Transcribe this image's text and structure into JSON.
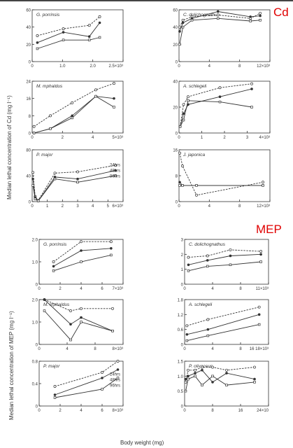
{
  "sections": {
    "cd_label": "Cd",
    "mep_label": "MEP",
    "cd_ylabel": "Median lethal concentration of Cd (mg l⁻¹)",
    "mep_ylabel": "Median lethal concentration of MEP (mg l⁻¹)",
    "xlabel": "Body weight (mg)"
  },
  "colors": {
    "ink": "#333333",
    "accent": "#e00000"
  },
  "chart_data": [
    {
      "id": "cd-g-porrinsis",
      "type": "line",
      "title": "G. porrinsis",
      "xlim": [
        0,
        3.5
      ],
      "ylim": [
        0,
        60
      ],
      "xticks": [
        "0",
        "1.0",
        "2.0",
        "2.5×10³"
      ],
      "yticks": [
        "0",
        "20",
        "40",
        "60"
      ],
      "series": [
        {
          "style": "dashed",
          "x": [
            0.2,
            1.2,
            2.2,
            2.6
          ],
          "y": [
            30,
            38,
            42,
            52
          ]
        },
        {
          "style": "solid-filled",
          "x": [
            0.2,
            1.2,
            2.2,
            2.6
          ],
          "y": [
            22,
            34,
            29,
            45
          ]
        },
        {
          "style": "solid",
          "x": [
            0.2,
            1.2,
            2.2,
            2.6
          ],
          "y": [
            15,
            25,
            25,
            28
          ]
        }
      ]
    },
    {
      "id": "cd-c-dolichognathus",
      "type": "line",
      "title": "C. dolichognathus",
      "xlim": [
        0,
        14
      ],
      "ylim": [
        0,
        60
      ],
      "xticks": [
        "0",
        "4",
        "8",
        "12×10³"
      ],
      "yticks": [
        "0",
        "20",
        "40",
        "60"
      ],
      "series": [
        {
          "style": "dashed",
          "x": [
            0.1,
            0.6,
            2,
            6,
            11,
            12.5
          ],
          "y": [
            40,
            48,
            52,
            54,
            50,
            56
          ]
        },
        {
          "style": "solid-filled",
          "x": [
            0.1,
            0.6,
            2,
            6,
            11,
            12.5
          ],
          "y": [
            35,
            45,
            50,
            58,
            52,
            53
          ]
        },
        {
          "style": "solid",
          "x": [
            0.1,
            0.6,
            2,
            6,
            11,
            12.5
          ],
          "y": [
            20,
            40,
            48,
            50,
            47,
            48
          ]
        }
      ]
    },
    {
      "id": "cd-m-mphaldus",
      "type": "line",
      "title": "M. mphaldus",
      "xlim": [
        0,
        5
      ],
      "ylim": [
        0,
        24
      ],
      "xticks": [
        "0",
        "2",
        "4",
        "5×10³"
      ],
      "yticks": [
        "0",
        "8",
        "16",
        "24"
      ],
      "series": [
        {
          "style": "dashed",
          "x": [
            0.1,
            1,
            2.2,
            3.5,
            4.5
          ],
          "y": [
            3,
            8,
            14,
            20,
            23
          ]
        },
        {
          "style": "solid-filled",
          "x": [
            0.1,
            1,
            2.2,
            3.5,
            4.5
          ],
          "y": [
            0,
            2,
            8,
            17,
            16
          ]
        },
        {
          "style": "solid",
          "x": [
            0.1,
            1,
            2.2,
            3.5,
            4.5
          ],
          "y": [
            0,
            2,
            7,
            17,
            12
          ]
        }
      ]
    },
    {
      "id": "cd-a-schlegeli",
      "type": "line",
      "title": "A. schlegeli",
      "xlim": [
        0,
        4
      ],
      "ylim": [
        0,
        40
      ],
      "xticks": [
        "0",
        "1",
        "2",
        "3",
        "4×10³"
      ],
      "yticks": [
        "0",
        "20",
        "40"
      ],
      "series": [
        {
          "style": "dashed",
          "x": [
            0.05,
            0.2,
            0.4,
            1.8,
            3.2
          ],
          "y": [
            5,
            22,
            28,
            35,
            38
          ]
        },
        {
          "style": "solid-filled",
          "x": [
            0.05,
            0.2,
            0.4,
            1.8,
            3.2
          ],
          "y": [
            5,
            15,
            22,
            28,
            34
          ]
        },
        {
          "style": "solid",
          "x": [
            0.05,
            0.2,
            0.4,
            1.8,
            3.2
          ],
          "y": [
            5,
            10,
            25,
            24,
            20
          ]
        }
      ]
    },
    {
      "id": "cd-p-major",
      "type": "line",
      "title": "P. major",
      "xlim": [
        0,
        6
      ],
      "ylim": [
        0,
        80
      ],
      "xticks": [
        "0",
        "1",
        "2",
        "3",
        "4",
        "5",
        "6×10³"
      ],
      "yticks": [
        "0",
        "40",
        "80"
      ],
      "legend": [
        "24hrs",
        "48hrs",
        "96hrs"
      ],
      "series": [
        {
          "name": "24hrs",
          "style": "dashed",
          "x": [
            0.05,
            0.2,
            0.4,
            1.5,
            3,
            5.5
          ],
          "y": [
            45,
            8,
            2,
            44,
            46,
            56
          ]
        },
        {
          "name": "48hrs",
          "style": "solid-filled",
          "x": [
            0.05,
            0.2,
            0.4,
            1.5,
            3,
            5.5
          ],
          "y": [
            35,
            6,
            1,
            38,
            35,
            48
          ]
        },
        {
          "name": "96hrs",
          "style": "solid",
          "x": [
            0.05,
            0.2,
            0.4,
            1.5,
            3,
            5.5
          ],
          "y": [
            25,
            4,
            1,
            35,
            30,
            40
          ]
        }
      ]
    },
    {
      "id": "cd-j-japonica",
      "type": "line",
      "title": "J. japonica",
      "xlim": [
        0,
        13
      ],
      "ylim": [
        0,
        16
      ],
      "xticks": [
        "0",
        "4",
        "8",
        "12×10³"
      ],
      "yticks": [
        "0",
        "8",
        "16"
      ],
      "series": [
        {
          "style": "dashed",
          "x": [
            0.1,
            0.5,
            2.5,
            12
          ],
          "y": [
            15,
            11,
            2,
            6
          ]
        },
        {
          "style": "solid-filled",
          "x": [
            0.1,
            0.5,
            2.5,
            12
          ],
          "y": [
            6,
            5,
            5,
            5
          ]
        },
        {
          "style": "solid",
          "x": [
            0.1,
            0.5,
            2.5,
            12
          ],
          "y": [
            5,
            5,
            5,
            5
          ]
        }
      ]
    },
    {
      "id": "mep-g-porrinsis",
      "type": "line",
      "title": "G. porrinsis",
      "xlim": [
        0,
        7
      ],
      "ylim": [
        0,
        2
      ],
      "xticks": [
        "0",
        "2",
        "4",
        "6",
        "7×10³"
      ],
      "yticks": [
        "0",
        "1.0",
        "2.0"
      ],
      "series": [
        {
          "style": "dashed",
          "x": [
            1.2,
            3.5,
            6
          ],
          "y": [
            1.0,
            1.9,
            1.9
          ]
        },
        {
          "style": "solid-filled",
          "x": [
            1.2,
            3.5,
            6
          ],
          "y": [
            0.8,
            1.5,
            1.6
          ]
        },
        {
          "style": "solid",
          "x": [
            1.2,
            3.5,
            6
          ],
          "y": [
            0.6,
            1.0,
            1.3
          ]
        }
      ]
    },
    {
      "id": "mep-c-dolichognathus",
      "type": "line",
      "title": "C. dolichognathus",
      "xlim": [
        0,
        11
      ],
      "ylim": [
        0,
        3
      ],
      "xticks": [
        "0",
        "4",
        "8",
        "11×10³"
      ],
      "yticks": [
        "0",
        "1",
        "2",
        "3"
      ],
      "series": [
        {
          "style": "dashed",
          "x": [
            0.5,
            3,
            6,
            10
          ],
          "y": [
            1.8,
            1.9,
            2.3,
            2.2
          ]
        },
        {
          "style": "solid-filled",
          "x": [
            0.5,
            3,
            6,
            10
          ],
          "y": [
            1.3,
            1.6,
            1.9,
            2.0
          ]
        },
        {
          "style": "solid",
          "x": [
            0.5,
            3,
            6,
            10
          ],
          "y": [
            0.9,
            1.2,
            1.3,
            1.5
          ]
        }
      ]
    },
    {
      "id": "mep-m-mphaldus",
      "type": "line",
      "title": "M. mphaldus",
      "xlim": [
        0,
        8
      ],
      "ylim": [
        0,
        2
      ],
      "xticks": [
        "0",
        "4",
        "8",
        "8×10³"
      ],
      "yticks": [
        "0",
        "1.0",
        "2.0"
      ],
      "series": [
        {
          "style": "dashed",
          "x": [
            0.5,
            3,
            4,
            7
          ],
          "y": [
            2.0,
            1.5,
            1.6,
            1.6
          ]
        },
        {
          "style": "solid-filled",
          "x": [
            0.5,
            3,
            4,
            7
          ],
          "y": [
            2.0,
            0.9,
            1.2,
            0.6
          ]
        },
        {
          "style": "solid",
          "x": [
            0.5,
            3,
            4,
            7
          ],
          "y": [
            1.5,
            0.2,
            1.0,
            0.6
          ]
        }
      ]
    },
    {
      "id": "mep-a-schlegeli",
      "type": "line",
      "title": "A. schlegeli",
      "xlim": [
        0,
        18
      ],
      "ylim": [
        0,
        1.8
      ],
      "xticks": [
        "0",
        "4",
        "8",
        "16 18×10³"
      ],
      "yticks": [
        "0",
        "0.6",
        "1.2",
        "1.8"
      ],
      "series": [
        {
          "style": "dashed",
          "x": [
            0.5,
            5,
            16
          ],
          "y": [
            0.75,
            1.0,
            1.5
          ]
        },
        {
          "style": "solid-filled",
          "x": [
            0.5,
            5,
            16
          ],
          "y": [
            0.4,
            0.6,
            1.2
          ]
        },
        {
          "style": "solid",
          "x": [
            0.5,
            5,
            16
          ],
          "y": [
            0.15,
            0.35,
            0.8
          ]
        }
      ]
    },
    {
      "id": "mep-p-major",
      "type": "line",
      "title": "P. major",
      "xlim": [
        0,
        8
      ],
      "ylim": [
        0,
        0.8
      ],
      "xticks": [
        "0",
        "2",
        "4",
        "6",
        "8×10³"
      ],
      "yticks": [
        "0",
        "0.4",
        "0.8"
      ],
      "legend": [
        "24hrs",
        "48hrs",
        "96hrs"
      ],
      "series": [
        {
          "name": "24hrs",
          "style": "dashed",
          "x": [
            1.5,
            6,
            7.5
          ],
          "y": [
            0.35,
            0.6,
            0.8
          ]
        },
        {
          "name": "48hrs",
          "style": "solid-filled",
          "x": [
            1.5,
            6,
            7.5
          ],
          "y": [
            0.2,
            0.5,
            0.65
          ]
        },
        {
          "name": "96hrs",
          "style": "solid",
          "x": [
            1.5,
            6,
            7.5
          ],
          "y": [
            0.15,
            0.3,
            0.5
          ]
        }
      ]
    },
    {
      "id": "mep-p-olivaceus",
      "type": "line",
      "title": "P. olivaceus",
      "xlim": [
        0,
        24
      ],
      "ylim": [
        0,
        1.5
      ],
      "xticks": [
        "0",
        "8",
        "16",
        "24×10"
      ],
      "yticks": [
        "0",
        "0.5",
        "1.0",
        "1.5"
      ],
      "series": [
        {
          "style": "dashed",
          "x": [
            0.3,
            1,
            3,
            5,
            8,
            12,
            20
          ],
          "y": [
            0.8,
            1.2,
            1.2,
            1.3,
            1.3,
            1.2,
            1.3
          ]
        },
        {
          "style": "solid-filled",
          "x": [
            0.3,
            1,
            3,
            5,
            8,
            12,
            20
          ],
          "y": [
            0.9,
            1.0,
            1.1,
            1.2,
            0.8,
            1.1,
            0.9
          ]
        },
        {
          "style": "solid",
          "x": [
            0.3,
            1,
            3,
            5,
            8,
            12,
            20
          ],
          "y": [
            0.5,
            0.9,
            1.0,
            0.7,
            1.0,
            0.7,
            0.8
          ]
        }
      ]
    }
  ]
}
